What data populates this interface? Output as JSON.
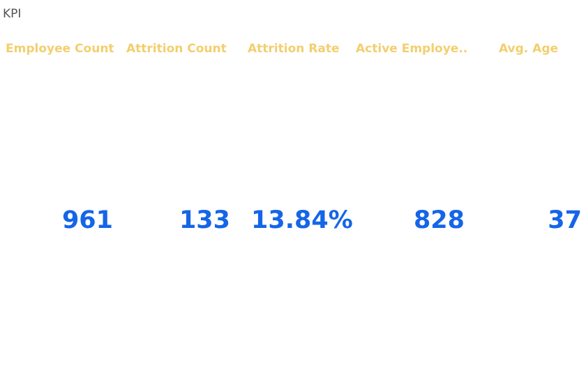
{
  "sheet": {
    "title": "KPI"
  },
  "kpis": [
    {
      "header": "Employee Count",
      "value": "961"
    },
    {
      "header": "Attrition Count",
      "value": "133"
    },
    {
      "header": "Attrition Rate",
      "value": "13.84%"
    },
    {
      "header": "Active Employe..",
      "value": "828"
    },
    {
      "header": "Avg. Age",
      "value": "37"
    }
  ],
  "colors": {
    "header": "#f2cf6f",
    "value": "#1565e8",
    "title": "#555555"
  }
}
